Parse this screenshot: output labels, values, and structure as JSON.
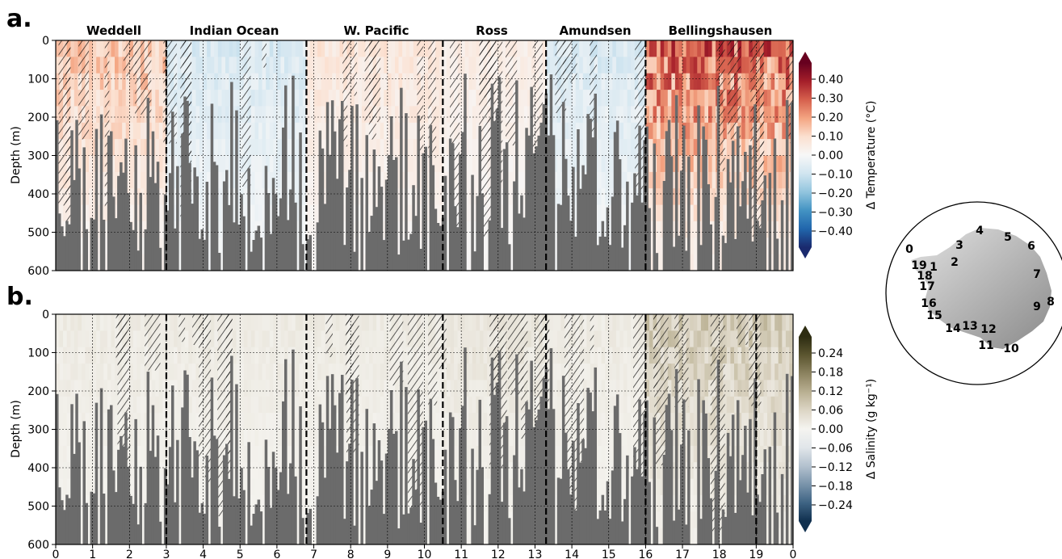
{
  "panels": [
    {
      "letter": "a.",
      "ylabel": "Depth (m)",
      "cbar_label": "Δ Temperature (°C)",
      "cbar_ticks": [
        "0.40",
        "0.30",
        "0.20",
        "0.10",
        "0.00",
        "−0.10",
        "−0.20",
        "−0.30",
        "−0.40"
      ],
      "cbar_colors": [
        "#67001f",
        "#a51f2a",
        "#d6604d",
        "#f4a582",
        "#fbe0d0",
        "#f7f7f7",
        "#d1e5f0",
        "#92c5de",
        "#4393c3",
        "#2166ac",
        "#1a2a6e"
      ]
    },
    {
      "letter": "b.",
      "ylabel": "Depth (m)",
      "cbar_label": "Δ Salinity (g kg⁻¹)",
      "cbar_ticks": [
        "0.24",
        "0.18",
        "0.12",
        "0.06",
        "0.00",
        "−0.06",
        "−0.12",
        "−0.18",
        "−0.24"
      ],
      "cbar_colors": [
        "#2e2d12",
        "#5c5630",
        "#8c8360",
        "#b9b092",
        "#ddd6c6",
        "#f5f4f0",
        "#e1e6ea",
        "#b4c2cf",
        "#7a94ab",
        "#3f6484",
        "#10304f"
      ]
    }
  ],
  "regions": [
    "Weddell",
    "Indian Ocean",
    "W. Pacific",
    "Ross",
    "Amundsen",
    "Bellingshausen"
  ],
  "map_labels": [
    "0",
    "1",
    "2",
    "3",
    "4",
    "5",
    "6",
    "7",
    "8",
    "9",
    "10",
    "11",
    "12",
    "13",
    "14",
    "15",
    "16",
    "17",
    "18",
    "19"
  ],
  "chart_data": [
    {
      "type": "heatmap",
      "panel": "a",
      "title": "",
      "xlabel": "",
      "ylabel": "Depth (m)",
      "xlim": [
        0,
        20
      ],
      "ylim": [
        600,
        0
      ],
      "x_ticks": [],
      "y_ticks": [
        0,
        100,
        200,
        300,
        400,
        500,
        600
      ],
      "colorbar_label": "Δ Temperature (°C)",
      "colorbar_ticks": [
        0.4,
        0.3,
        0.2,
        0.1,
        0.0,
        -0.1,
        -0.2,
        -0.3,
        -0.4
      ],
      "region_boundaries": [
        3,
        6.8,
        10.5,
        13.3,
        16
      ],
      "regions": [
        {
          "name": "Weddell",
          "x": [
            0,
            3
          ],
          "anomaly_upper": 0.15
        },
        {
          "name": "Indian Ocean",
          "x": [
            3,
            6.8
          ],
          "anomaly_upper": -0.08
        },
        {
          "name": "W. Pacific",
          "x": [
            6.8,
            10.5
          ],
          "anomaly_upper": 0.08
        },
        {
          "name": "Ross",
          "x": [
            10.5,
            13.3
          ],
          "anomaly_upper": 0.05
        },
        {
          "name": "Amundsen",
          "x": [
            13.3,
            16
          ],
          "anomaly_upper": -0.08
        },
        {
          "name": "Bellingshausen",
          "x": [
            16,
            20
          ],
          "anomaly_upper": 0.3
        }
      ],
      "grid": true
    },
    {
      "type": "heatmap",
      "panel": "b",
      "title": "",
      "xlabel": "",
      "ylabel": "Depth (m)",
      "xlim": [
        0,
        20
      ],
      "ylim": [
        600,
        0
      ],
      "x_ticks": [
        "0",
        "1",
        "2",
        "3",
        "4",
        "5",
        "6",
        "7",
        "8",
        "9",
        "10",
        "11",
        "12",
        "13",
        "14",
        "15",
        "16",
        "17",
        "18",
        "19",
        "0"
      ],
      "y_ticks": [
        0,
        100,
        200,
        300,
        400,
        500,
        600
      ],
      "colorbar_label": "Δ Salinity (g kg⁻¹)",
      "colorbar_ticks": [
        0.24,
        0.18,
        0.12,
        0.06,
        0.0,
        -0.06,
        -0.12,
        -0.18,
        -0.24
      ],
      "region_boundaries": [
        3,
        6.8,
        10.5,
        13.3,
        16,
        19
      ],
      "regions": [
        {
          "name": "Weddell",
          "x": [
            0,
            3
          ],
          "anomaly_upper": 0.02
        },
        {
          "name": "Indian Ocean",
          "x": [
            3,
            6.8
          ],
          "anomaly_upper": 0.02
        },
        {
          "name": "W. Pacific",
          "x": [
            6.8,
            10.5
          ],
          "anomaly_upper": 0.02
        },
        {
          "name": "Ross",
          "x": [
            10.5,
            13.3
          ],
          "anomaly_upper": 0.03
        },
        {
          "name": "Amundsen",
          "x": [
            13.3,
            16
          ],
          "anomaly_upper": 0.02
        },
        {
          "name": "Bellingshausen",
          "x": [
            16,
            20
          ],
          "anomaly_upper": 0.08
        }
      ],
      "grid": true
    }
  ]
}
